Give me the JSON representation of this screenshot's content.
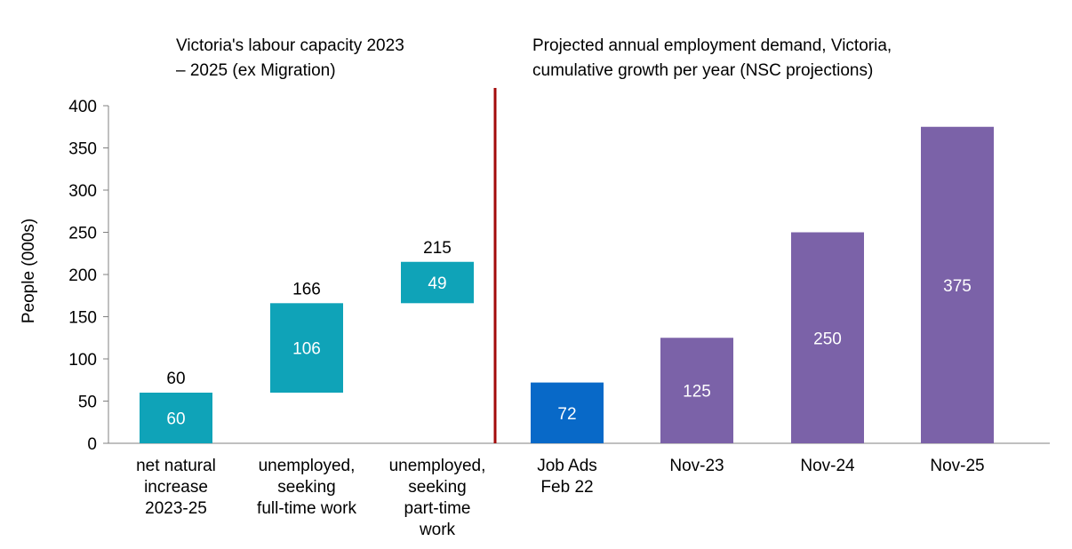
{
  "chart_data": {
    "type": "bar",
    "ylabel": "People (000s)",
    "ylim": [
      0,
      400
    ],
    "yticks": [
      0,
      50,
      100,
      150,
      200,
      250,
      300,
      350,
      400
    ],
    "grid": false,
    "section_titles": {
      "left": [
        "Victoria's labour capacity 2023",
        "– 2025 (ex Migration)"
      ],
      "right": [
        "Projected annual employment demand, Victoria,",
        "cumulative growth per year (NSC projections)"
      ]
    },
    "categories": [
      [
        "net natural",
        "increase",
        "2023-25"
      ],
      [
        "unemployed,",
        "seeking",
        "full-time work"
      ],
      [
        "unemployed,",
        "seeking",
        "part-time",
        "work"
      ],
      [
        "Job Ads",
        "Feb 22"
      ],
      [
        "Nov-23"
      ],
      [
        "Nov-24"
      ],
      [
        "Nov-25"
      ]
    ],
    "bars": [
      {
        "base": 0,
        "value": 60,
        "inside_label": "60",
        "total_label": "60",
        "color": "#0fa3b8"
      },
      {
        "base": 60,
        "value": 106,
        "inside_label": "106",
        "total_label": "166",
        "color": "#0fa3b8"
      },
      {
        "base": 166,
        "value": 49,
        "inside_label": "49",
        "total_label": "215",
        "color": "#0fa3b8"
      },
      {
        "base": 0,
        "value": 72,
        "inside_label": "72",
        "total_label": "",
        "color": "#0869c8"
      },
      {
        "base": 0,
        "value": 125,
        "inside_label": "125",
        "total_label": "",
        "color": "#7b62a8"
      },
      {
        "base": 0,
        "value": 250,
        "inside_label": "250",
        "total_label": "",
        "color": "#7b62a8"
      },
      {
        "base": 0,
        "value": 375,
        "inside_label": "375",
        "total_label": "",
        "color": "#7b62a8"
      }
    ],
    "divider_color": "#a30b0b"
  }
}
